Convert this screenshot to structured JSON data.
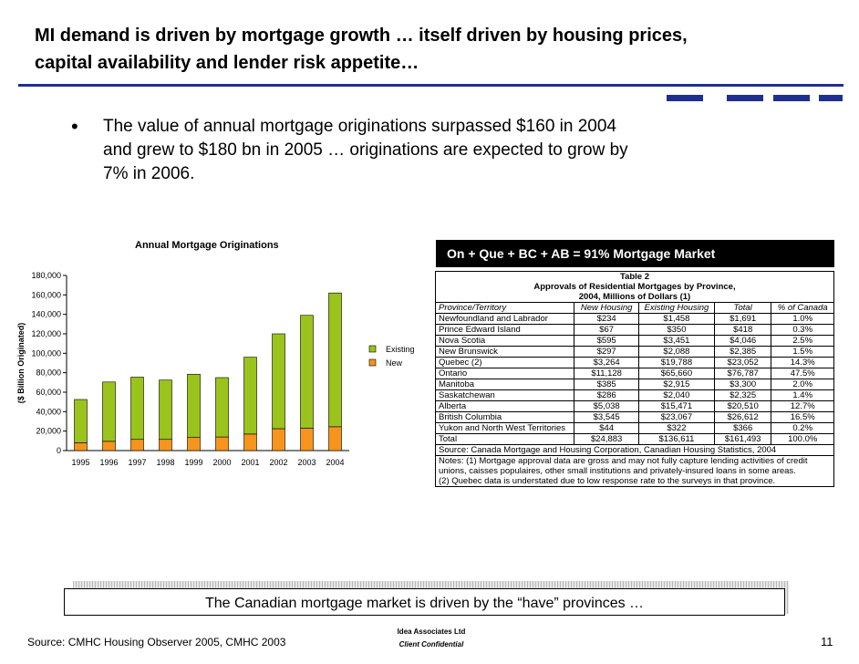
{
  "slide": {
    "title_line1": "MI demand is driven by mortgage growth … itself driven by housing prices,",
    "title_line2": "capital availability and lender risk appetite…",
    "bullet_mark": "•",
    "bullet_line1": "The value of annual mortgage originations surpassed $160 in 2004",
    "bullet_line2": "and grew to $180 bn in 2005 … originations are expected to grow by",
    "bullet_line3": "7% in 2006.",
    "callout": "On + Que + BC + AB = 91% Mortgage Market",
    "banner": "The Canadian mortgage market is driven by the “have” provinces …",
    "source": "Source: CMHC Housing Observer 2005, CMHC 2003",
    "company": "Idea Associates Ltd",
    "confidential": "Client Confidential",
    "page_number": "11",
    "accent_color": "#1f2f8f"
  },
  "chart_data": {
    "type": "bar",
    "stacked": true,
    "title": "Annual Mortgage Originations",
    "ylabel": "($ Billion Originated)",
    "xlabel": "",
    "categories": [
      "1995",
      "1996",
      "1997",
      "1998",
      "1999",
      "2000",
      "2001",
      "2002",
      "2003",
      "2004"
    ],
    "series": [
      {
        "name": "New",
        "color": "#f7941d",
        "values": [
          8000,
          9500,
          11500,
          11500,
          13500,
          14000,
          17000,
          22500,
          23000,
          24500
        ]
      },
      {
        "name": "Existing",
        "color": "#9ac31c",
        "values": [
          44500,
          61000,
          64000,
          61000,
          65000,
          61000,
          79000,
          97500,
          116000,
          137500
        ]
      }
    ],
    "ylim": [
      0,
      180000
    ],
    "yticks": [
      "0",
      "20,000",
      "40,000",
      "60,000",
      "80,000",
      "100,000",
      "120,000",
      "140,000",
      "160,000",
      "180,000"
    ],
    "legend": "right",
    "grid": false
  },
  "table": {
    "caption_line1": "Table 2",
    "caption_line2": "Approvals of Residential Mortgages by Province,",
    "caption_line3": "2004, Millions of Dollars (1)",
    "headers": [
      "Province/Territory",
      "New Housing",
      "Existing Housing",
      "Total",
      "% of Canada"
    ],
    "rows": [
      [
        "Newfoundland and Labrador",
        "$234",
        "$1,458",
        "$1,691",
        "1.0%"
      ],
      [
        "Prince Edward Island",
        "$67",
        "$350",
        "$418",
        "0.3%"
      ],
      [
        "Nova Scotia",
        "$595",
        "$3,451",
        "$4,046",
        "2.5%"
      ],
      [
        "New Brunswick",
        "$297",
        "$2,088",
        "$2,385",
        "1.5%"
      ],
      [
        "Quebec (2)",
        "$3,264",
        "$19,788",
        "$23,052",
        "14.3%"
      ],
      [
        "Ontario",
        "$11,128",
        "$65,660",
        "$76,787",
        "47.5%"
      ],
      [
        "Manitoba",
        "$385",
        "$2,915",
        "$3,300",
        "2.0%"
      ],
      [
        "Saskatchewan",
        "$286",
        "$2,040",
        "$2,325",
        "1.4%"
      ],
      [
        "Alberta",
        "$5,038",
        "$15,471",
        "$20,510",
        "12.7%"
      ],
      [
        "British Columbia",
        "$3,545",
        "$23,067",
        "$26,612",
        "16.5%"
      ],
      [
        "Yukon and North West Territories",
        "$44",
        "$322",
        "$366",
        "0.2%"
      ],
      [
        "Total",
        "$24,883",
        "$136,611",
        "$161,493",
        "100.0%"
      ]
    ],
    "source": "Source:  Canada Mortgage and Housing Corporation, Canadian Housing Statistics, 2004",
    "note1": "Notes: (1) Mortgage approval data are gross and may not fully capture lending activities of credit unions, caisses populaires, other small institutions and privately-insured loans in some areas.",
    "note2": "(2) Quebec data is understated due to low response rate to the surveys in that province."
  }
}
